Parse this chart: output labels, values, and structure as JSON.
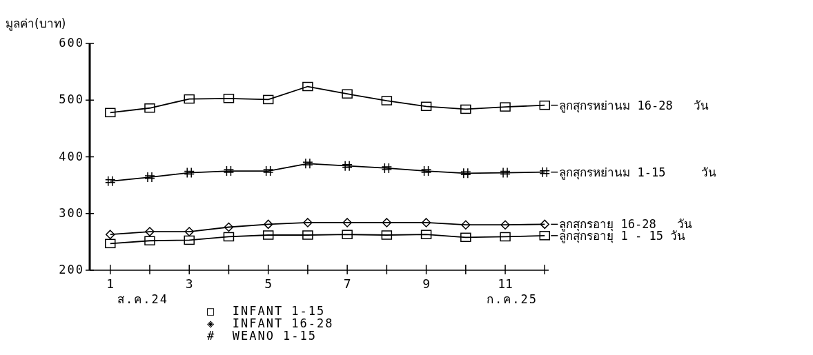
{
  "chart_data": {
    "type": "line",
    "ylabel": "มูลค่า(บาท)",
    "x": [
      1,
      2,
      3,
      4,
      5,
      6,
      7,
      8,
      9,
      10,
      11,
      12
    ],
    "xlim": [
      0.48,
      12.1
    ],
    "ylim": [
      200,
      600
    ],
    "xticks": [
      1,
      {
        "value": 2,
        "label": null
      },
      3,
      {
        "value": 4,
        "label": null
      },
      5,
      {
        "value": 6,
        "label": null
      },
      7,
      {
        "value": 8,
        "label": null
      },
      9,
      {
        "value": 10,
        "label": null
      },
      11,
      {
        "value": 12,
        "label": null
      }
    ],
    "yticks": [
      200,
      300,
      400,
      500,
      600
    ],
    "series": [
      {
        "name": "ลูกสุกรหย่านม 16-28   วัน",
        "color": "#000000",
        "marker": "square",
        "values": [
          478,
          486,
          502,
          503,
          501,
          524,
          511,
          499,
          489,
          484,
          488,
          491
        ]
      },
      {
        "name": "ลูกสุกรหย่านม 1-15     วัน",
        "color": "#000000",
        "marker": "cross",
        "values": [
          357,
          364,
          372,
          375,
          375,
          388,
          384,
          380,
          375,
          371,
          372,
          373
        ]
      },
      {
        "name": "ลูกสุกรอายุ 16-28   วัน",
        "color": "#000000",
        "marker": "diamond",
        "values": [
          263,
          268,
          268,
          276,
          281,
          284,
          284,
          284,
          284,
          280,
          280,
          281
        ]
      },
      {
        "name": "ลูกสุกรอายุ 1 - 15 วัน",
        "color": "#000000",
        "marker": "square",
        "values": [
          247,
          252,
          253,
          259,
          262,
          262,
          263,
          262,
          263,
          258,
          259,
          261
        ]
      }
    ],
    "annotations": [
      "ส.ค.24",
      "ก.ค.25",
      "□  INFANT 1-15",
      "◈  INFANT 16-28",
      "#  WEANO 1-15"
    ],
    "legend": "right",
    "grid": false
  }
}
